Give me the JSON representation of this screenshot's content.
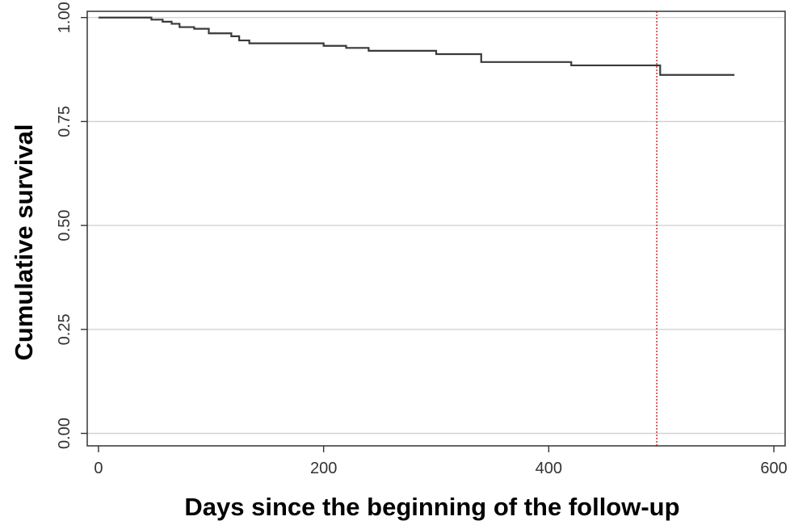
{
  "chart_data": {
    "type": "line",
    "xlabel": "Days since the beginning of the follow-up",
    "ylabel": "Cumulative survival",
    "xlim": [
      -10,
      610
    ],
    "ylim": [
      -0.03,
      1.015
    ],
    "x_ticks": [
      0,
      200,
      400,
      600
    ],
    "x_tick_labels": [
      "0",
      "200",
      "400",
      "600"
    ],
    "y_ticks": [
      0.0,
      0.25,
      0.5,
      0.75,
      1.0
    ],
    "y_tick_labels": [
      "0.00",
      "0.25",
      "0.50",
      "0.75",
      "1.00"
    ],
    "grid": "horizontal",
    "series": [
      {
        "step": "post",
        "x": [
          0,
          47,
          57,
          65,
          72,
          85,
          98,
          118,
          125,
          134,
          200,
          220,
          240,
          300,
          340,
          420,
          499,
          565
        ],
        "y": [
          1.0,
          0.995,
          0.99,
          0.985,
          0.977,
          0.973,
          0.962,
          0.955,
          0.945,
          0.938,
          0.932,
          0.927,
          0.92,
          0.912,
          0.893,
          0.885,
          0.862,
          0.862
        ]
      }
    ],
    "reference_lines": [
      {
        "axis": "x",
        "value": 496,
        "style": "dotted"
      }
    ]
  },
  "colors": {
    "survival_line": "#3a3a3a",
    "reference_line": "#cc2222",
    "gridline": "#cfcfcf",
    "axis": "#333333"
  }
}
